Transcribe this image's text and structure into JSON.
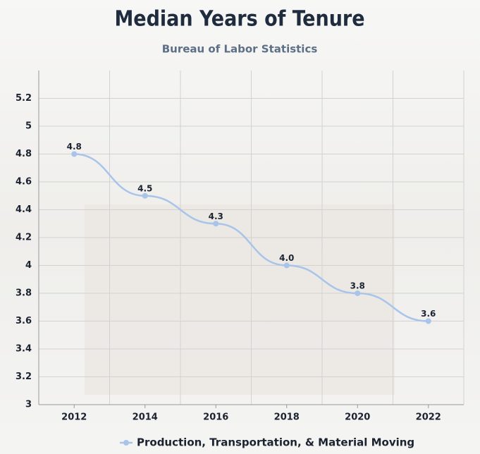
{
  "chart_data": {
    "type": "line",
    "title": "Median Years of Tenure",
    "subtitle": "Bureau of Labor Statistics",
    "categories": [
      "2012",
      "2014",
      "2016",
      "2018",
      "2020",
      "2022"
    ],
    "series": [
      {
        "name": "Production, Transportation, & Material Moving",
        "color": "#a8c4ea",
        "values": [
          4.8,
          4.5,
          4.3,
          4.0,
          3.8,
          3.6
        ],
        "value_labels": [
          "4.8",
          "4.5",
          "4.3",
          "4.0",
          "3.8",
          "3.6"
        ]
      }
    ],
    "ylim": [
      3,
      5.4
    ],
    "yticks": [
      3,
      3.2,
      3.4,
      3.6,
      3.8,
      4,
      4.2,
      4.4,
      4.6,
      4.8,
      5,
      5.2
    ],
    "grid": true,
    "legend": "bottom"
  }
}
